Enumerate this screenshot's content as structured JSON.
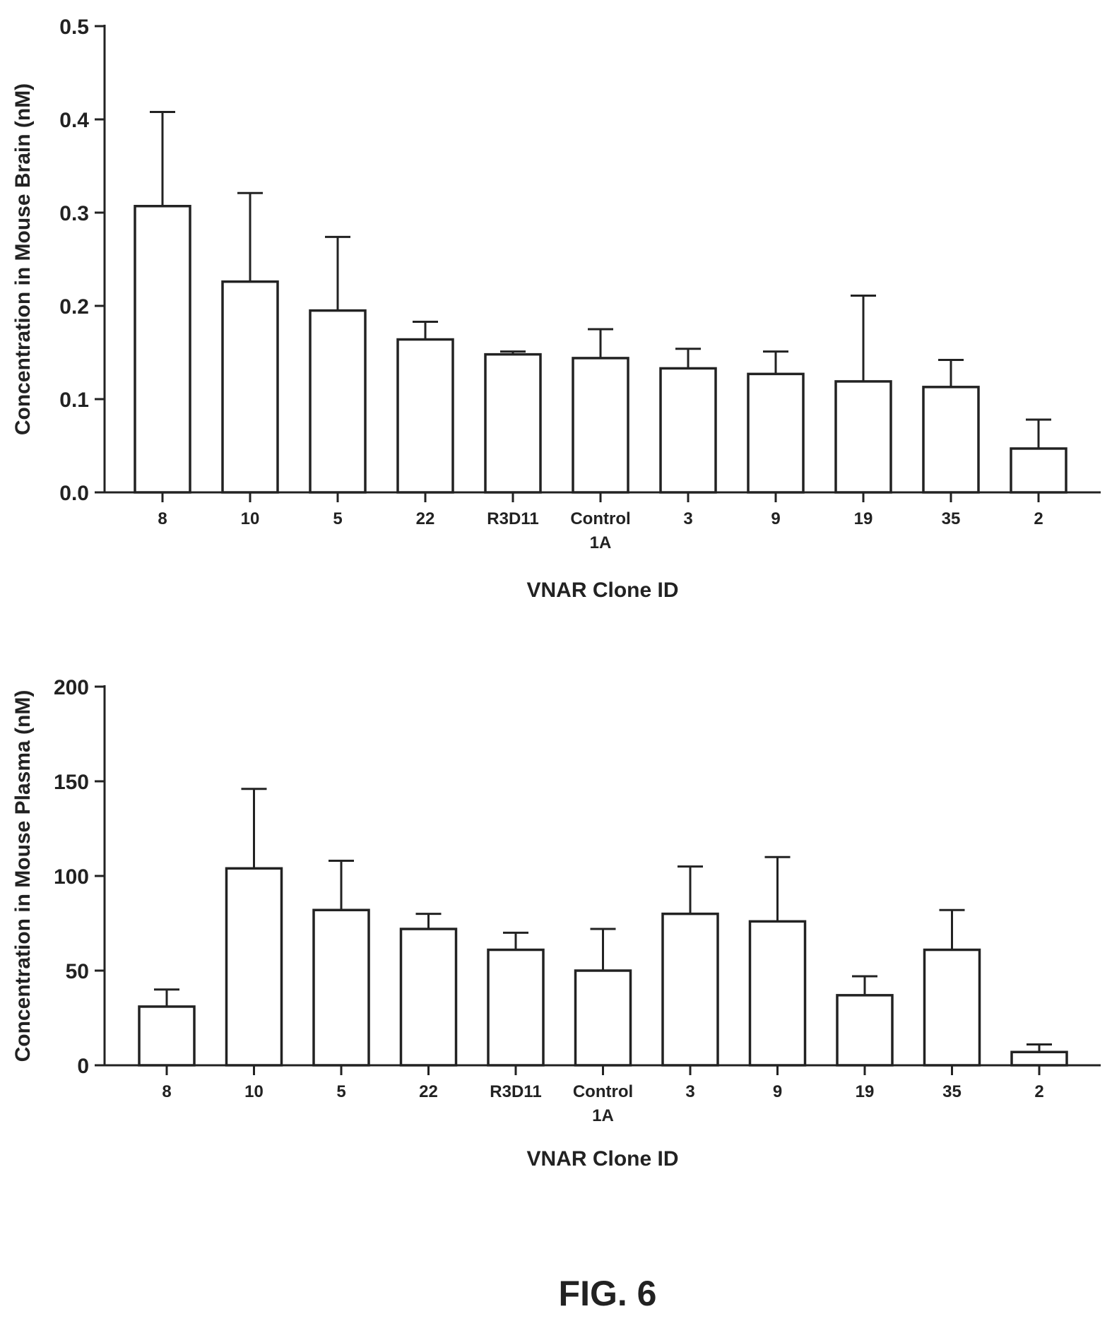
{
  "figure_caption": "FIG. 6",
  "chart_data": [
    {
      "type": "bar",
      "categories": [
        "8",
        "10",
        "5",
        "22",
        "R3D11",
        "Control 1A",
        "3",
        "9",
        "19",
        "35",
        "2"
      ],
      "series": [
        {
          "values": [
            0.307,
            0.226,
            0.195,
            0.164,
            0.148,
            0.144,
            0.133,
            0.127,
            0.119,
            0.113,
            0.047
          ],
          "error_upper": [
            0.408,
            0.321,
            0.274,
            0.183,
            0.151,
            0.175,
            0.154,
            0.151,
            0.211,
            0.142,
            0.078
          ]
        }
      ],
      "title": "",
      "xlabel": "VNAR Clone ID",
      "ylabel": "Concentration in Mouse Brain (nM)",
      "ylim": [
        0,
        0.5
      ],
      "yticks": [
        0.0,
        0.1,
        0.2,
        0.3,
        0.4,
        0.5
      ],
      "ytick_labels": [
        "0.0",
        "0.1",
        "0.2",
        "0.3",
        "0.4",
        "0.5"
      ],
      "grid": false,
      "legend": "none",
      "bar_fill": "#ffffff",
      "stroke_color": "#222222"
    },
    {
      "type": "bar",
      "categories": [
        "8",
        "10",
        "5",
        "22",
        "R3D11",
        "Control 1A",
        "3",
        "9",
        "19",
        "35",
        "2"
      ],
      "series": [
        {
          "values": [
            31,
            104,
            82,
            72,
            61,
            50,
            80,
            76,
            37,
            61,
            7
          ],
          "error_upper": [
            40,
            146,
            108,
            80,
            70,
            72,
            105,
            110,
            47,
            82,
            11
          ]
        }
      ],
      "title": "",
      "xlabel": "VNAR Clone ID",
      "ylabel": "Concentration in  Mouse Plasma (nM)",
      "ylim": [
        0,
        200
      ],
      "yticks": [
        0,
        50,
        100,
        150,
        200
      ],
      "ytick_labels": [
        "0",
        "50",
        "100",
        "150",
        "200"
      ],
      "grid": false,
      "legend": "none",
      "bar_fill": "#ffffff",
      "stroke_color": "#222222"
    }
  ]
}
